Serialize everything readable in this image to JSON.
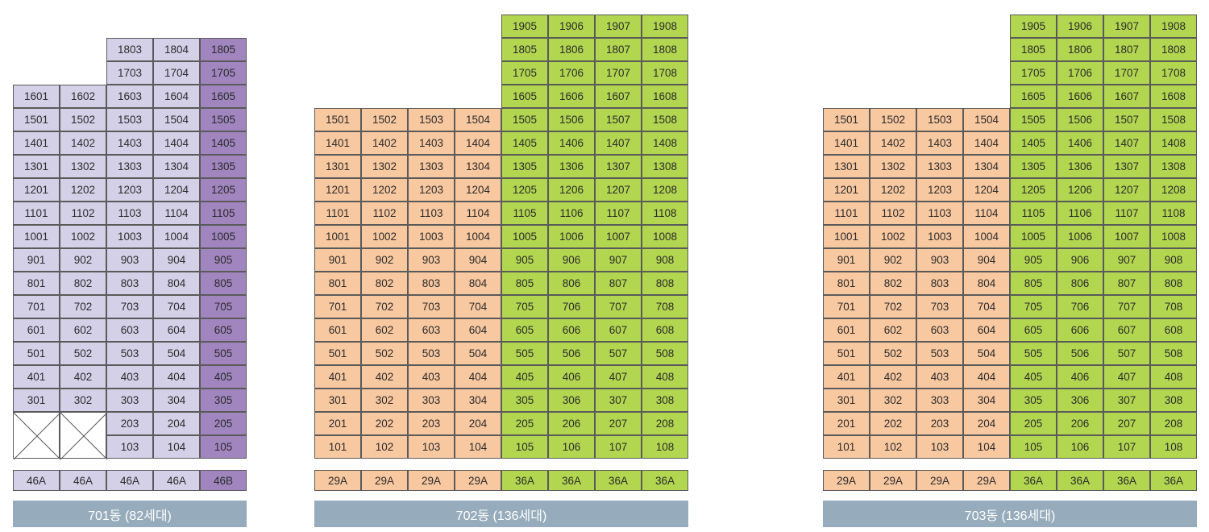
{
  "colors": {
    "lavender": "#d4d0e8",
    "purple": "#a085bf",
    "peach": "#f8c8a0",
    "green": "#b2d650",
    "label_bg": "#96abbb"
  },
  "buildings": [
    {
      "name": "701동 (82세대)",
      "columns": [
        {
          "type": "46A",
          "color": "lavender",
          "units": [
            "",
            "",
            "301",
            "401",
            "501",
            "601",
            "701",
            "801",
            "901",
            "1001",
            "1101",
            "1201",
            "1301",
            "1401",
            "1501",
            "1601"
          ]
        },
        {
          "type": "46A",
          "color": "lavender",
          "units": [
            "",
            "",
            "302",
            "402",
            "502",
            "602",
            "702",
            "802",
            "902",
            "1002",
            "1102",
            "1202",
            "1302",
            "1402",
            "1502",
            "1602"
          ]
        },
        {
          "type": "46A",
          "color": "lavender",
          "units": [
            "103",
            "203",
            "303",
            "403",
            "503",
            "603",
            "703",
            "803",
            "903",
            "1003",
            "1103",
            "1203",
            "1303",
            "1403",
            "1503",
            "1603",
            "1703",
            "1803"
          ]
        },
        {
          "type": "46A",
          "color": "lavender",
          "units": [
            "104",
            "204",
            "304",
            "404",
            "504",
            "604",
            "704",
            "804",
            "904",
            "1004",
            "1104",
            "1204",
            "1304",
            "1404",
            "1504",
            "1604",
            "1704",
            "1804"
          ]
        },
        {
          "type": "46B",
          "color": "purple",
          "units": [
            "105",
            "205",
            "305",
            "405",
            "505",
            "605",
            "705",
            "805",
            "905",
            "1005",
            "1105",
            "1205",
            "1305",
            "1405",
            "1505",
            "1605",
            "1705",
            "1805"
          ]
        }
      ]
    },
    {
      "name": "702동 (136세대)",
      "columns": [
        {
          "type": "29A",
          "color": "peach",
          "units": [
            "101",
            "201",
            "301",
            "401",
            "501",
            "601",
            "701",
            "801",
            "901",
            "1001",
            "1101",
            "1201",
            "1301",
            "1401",
            "1501"
          ]
        },
        {
          "type": "29A",
          "color": "peach",
          "units": [
            "102",
            "202",
            "302",
            "402",
            "502",
            "602",
            "702",
            "802",
            "902",
            "1002",
            "1102",
            "1202",
            "1302",
            "1402",
            "1502"
          ]
        },
        {
          "type": "29A",
          "color": "peach",
          "units": [
            "103",
            "203",
            "303",
            "403",
            "503",
            "603",
            "703",
            "803",
            "903",
            "1003",
            "1103",
            "1203",
            "1303",
            "1403",
            "1503"
          ]
        },
        {
          "type": "29A",
          "color": "peach",
          "units": [
            "104",
            "204",
            "304",
            "404",
            "504",
            "604",
            "704",
            "804",
            "904",
            "1004",
            "1104",
            "1204",
            "1304",
            "1404",
            "1504"
          ]
        },
        {
          "type": "36A",
          "color": "green",
          "units": [
            "105",
            "205",
            "305",
            "405",
            "505",
            "605",
            "705",
            "805",
            "905",
            "1005",
            "1105",
            "1205",
            "1305",
            "1405",
            "1505",
            "1605",
            "1705",
            "1805",
            "1905"
          ]
        },
        {
          "type": "36A",
          "color": "green",
          "units": [
            "106",
            "206",
            "306",
            "406",
            "506",
            "606",
            "706",
            "806",
            "906",
            "1006",
            "1106",
            "1206",
            "1306",
            "1406",
            "1506",
            "1606",
            "1706",
            "1806",
            "1906"
          ]
        },
        {
          "type": "36A",
          "color": "green",
          "units": [
            "107",
            "207",
            "307",
            "407",
            "507",
            "607",
            "707",
            "807",
            "907",
            "1007",
            "1107",
            "1207",
            "1307",
            "1407",
            "1507",
            "1607",
            "1707",
            "1807",
            "1907"
          ]
        },
        {
          "type": "36A",
          "color": "green",
          "units": [
            "108",
            "208",
            "308",
            "408",
            "508",
            "608",
            "708",
            "808",
            "908",
            "1008",
            "1108",
            "1208",
            "1308",
            "1408",
            "1508",
            "1608",
            "1708",
            "1808",
            "1908"
          ]
        }
      ]
    },
    {
      "name": "703동 (136세대)",
      "columns": [
        {
          "type": "29A",
          "color": "peach",
          "units": [
            "101",
            "201",
            "301",
            "401",
            "501",
            "601",
            "701",
            "801",
            "901",
            "1001",
            "1101",
            "1201",
            "1301",
            "1401",
            "1501"
          ]
        },
        {
          "type": "29A",
          "color": "peach",
          "units": [
            "102",
            "202",
            "302",
            "402",
            "502",
            "602",
            "702",
            "802",
            "902",
            "1002",
            "1102",
            "1202",
            "1302",
            "1402",
            "1502"
          ]
        },
        {
          "type": "29A",
          "color": "peach",
          "units": [
            "103",
            "203",
            "303",
            "403",
            "503",
            "603",
            "703",
            "803",
            "903",
            "1003",
            "1103",
            "1203",
            "1303",
            "1403",
            "1503"
          ]
        },
        {
          "type": "29A",
          "color": "peach",
          "units": [
            "104",
            "204",
            "304",
            "404",
            "504",
            "604",
            "704",
            "804",
            "904",
            "1004",
            "1104",
            "1204",
            "1304",
            "1404",
            "1504"
          ]
        },
        {
          "type": "36A",
          "color": "green",
          "units": [
            "105",
            "205",
            "305",
            "405",
            "505",
            "605",
            "705",
            "805",
            "905",
            "1005",
            "1105",
            "1205",
            "1305",
            "1405",
            "1505",
            "1605",
            "1705",
            "1805",
            "1905"
          ]
        },
        {
          "type": "36A",
          "color": "green",
          "units": [
            "106",
            "206",
            "306",
            "406",
            "506",
            "606",
            "706",
            "806",
            "906",
            "1006",
            "1106",
            "1206",
            "1306",
            "1406",
            "1506",
            "1606",
            "1706",
            "1806",
            "1906"
          ]
        },
        {
          "type": "36A",
          "color": "green",
          "units": [
            "107",
            "207",
            "307",
            "407",
            "507",
            "607",
            "707",
            "807",
            "907",
            "1007",
            "1107",
            "1207",
            "1307",
            "1407",
            "1507",
            "1607",
            "1707",
            "1807",
            "1907"
          ]
        },
        {
          "type": "36A",
          "color": "green",
          "units": [
            "108",
            "208",
            "308",
            "408",
            "508",
            "608",
            "708",
            "808",
            "908",
            "1008",
            "1108",
            "1208",
            "1308",
            "1408",
            "1508",
            "1608",
            "1708",
            "1808",
            "1908"
          ]
        }
      ]
    }
  ]
}
